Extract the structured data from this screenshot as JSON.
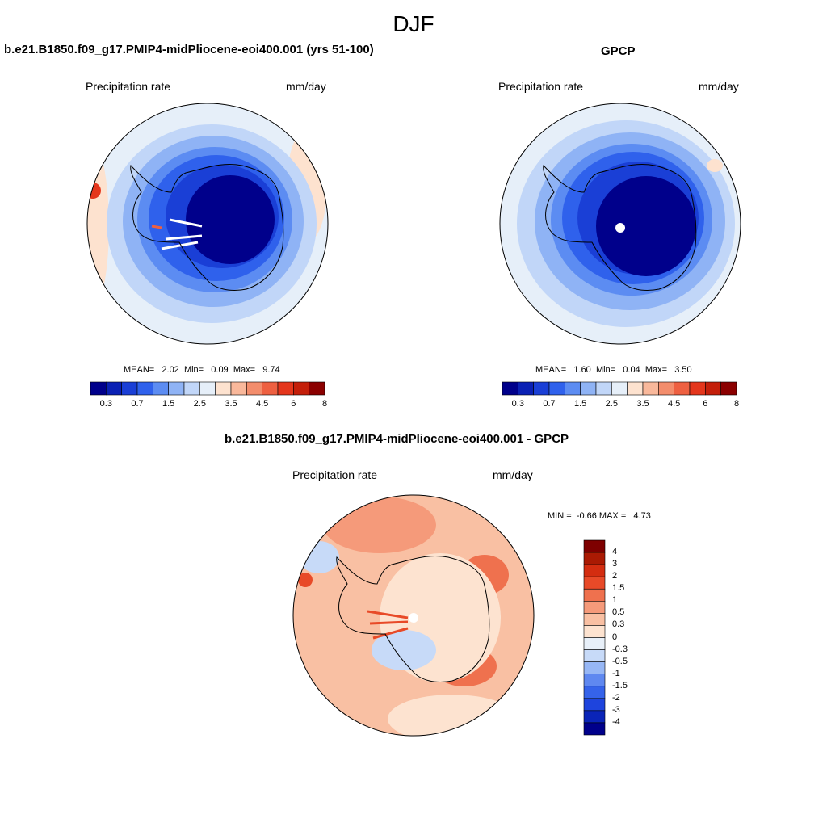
{
  "figure": {
    "season": "DJF"
  },
  "colors": {
    "abs": [
      "#00008b",
      "#0a20b4",
      "#1a3fd6",
      "#2f61ec",
      "#5c8cf2",
      "#8fb3f5",
      "#c1d6f8",
      "#e6eff9",
      "#fde2cf",
      "#f9b89b",
      "#f38d6c",
      "#ee6041",
      "#e4361c",
      "#c41f0a",
      "#8b0000"
    ],
    "diff": [
      "#00008b",
      "#0a24b8",
      "#1e44dd",
      "#3563ea",
      "#5f88f0",
      "#97b7f5",
      "#c7daf8",
      "#e8f0f9",
      "#fde3d0",
      "#f9c0a3",
      "#f59a7a",
      "#ef714e",
      "#e84a28",
      "#d42d10",
      "#aa1a03",
      "#7e0000"
    ],
    "coast": "#000000"
  },
  "chart_data": [
    {
      "type": "heatmap",
      "projection": "south-polar-stereographic",
      "title": "b.e21.B1850.f09_g17.PMIP4-midPliocene-eoi400.001 (yrs 51-100)",
      "left_label": "Precipitation rate",
      "right_label": "mm/day",
      "stats": {
        "mean_label": "MEAN=",
        "mean": "2.02",
        "min_label": "Min=",
        "min": "0.09",
        "max_label": "Max=",
        "max": "9.74"
      },
      "colorbar": {
        "orientation": "horizontal",
        "levels": [
          "0.2",
          "0.3",
          "0.5",
          "0.7",
          "1",
          "1.5",
          "2",
          "2.5",
          "3",
          "3.5",
          "4",
          "4.5",
          "5",
          "6",
          "7",
          "8"
        ],
        "shown_ticks": [
          "0.3",
          "0.7",
          "1.5",
          "2.5",
          "3.5",
          "4.5",
          "6",
          "8"
        ]
      }
    },
    {
      "type": "heatmap",
      "projection": "south-polar-stereographic",
      "title": "GPCP",
      "left_label": "Precipitation rate",
      "right_label": "mm/day",
      "stats": {
        "mean_label": "MEAN=",
        "mean": "1.60",
        "min_label": "Min=",
        "min": "0.04",
        "max_label": "Max=",
        "max": "3.50"
      },
      "colorbar": {
        "orientation": "horizontal",
        "levels": [
          "0.2",
          "0.3",
          "0.5",
          "0.7",
          "1",
          "1.5",
          "2",
          "2.5",
          "3",
          "3.5",
          "4",
          "4.5",
          "5",
          "6",
          "7",
          "8"
        ],
        "shown_ticks": [
          "0.3",
          "0.7",
          "1.5",
          "2.5",
          "3.5",
          "4.5",
          "6",
          "8"
        ]
      }
    },
    {
      "type": "heatmap",
      "projection": "south-polar-stereographic",
      "title": "b.e21.B1850.f09_g17.PMIP4-midPliocene-eoi400.001 - GPCP",
      "left_label": "Precipitation rate",
      "right_label": "mm/day",
      "stats": {
        "min_label": "MIN =",
        "min": "-0.66",
        "max_label": "MAX =",
        "max": "4.73"
      },
      "colorbar": {
        "orientation": "vertical",
        "levels": [
          "4",
          "3",
          "2",
          "1.5",
          "1",
          "0.5",
          "0.3",
          "0",
          "-0.3",
          "-0.5",
          "-1",
          "-1.5",
          "-2",
          "-3",
          "-4"
        ]
      }
    }
  ]
}
